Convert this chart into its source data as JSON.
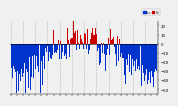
{
  "background_color": "#f0f0f0",
  "bar_color_positive": "#cc0000",
  "bar_color_negative": "#0033cc",
  "y_min": -55,
  "y_max": 25,
  "yticks": [
    -50,
    -40,
    -30,
    -20,
    -10,
    0,
    10,
    20
  ],
  "num_points": 365,
  "seed": 42,
  "legend_blue_label": " Lo",
  "legend_red_label": " Hi",
  "grid_color": "#aaaaaa",
  "grid_alpha": 0.8,
  "zero_line_color": "#000000"
}
